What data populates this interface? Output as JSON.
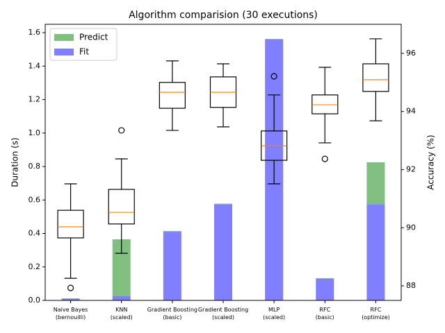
{
  "chart_data": {
    "type": "bar_box",
    "title": "Algorithm comparision (30 executions)",
    "ylabel": "Duration (s)",
    "y2label": "Accuracy (%)",
    "categories": [
      [
        "Naive Bayes",
        "(bernouilli)"
      ],
      [
        "KNN",
        "(scaled)"
      ],
      [
        "Gradient Boosting",
        "(basic)"
      ],
      [
        "Gradient Boosting",
        "(scaled)"
      ],
      [
        "MLP",
        "(scaled)"
      ],
      [
        "RFC",
        "(basic)"
      ],
      [
        "RFC",
        "(optimize)"
      ]
    ],
    "series": [
      {
        "name": "Fit",
        "color": "#7f7fff",
        "values": [
          0.01,
          0.025,
          0.41,
          0.575,
          1.56,
          0.13,
          0.575
        ]
      },
      {
        "name": "Predict",
        "color": "#7fbf7f",
        "values": [
          0.002,
          0.34,
          0.005,
          0.003,
          0.003,
          0.003,
          0.25
        ]
      }
    ],
    "boxes": [
      {
        "whislo": 88.26,
        "q1": 89.65,
        "med": 90.03,
        "q3": 90.6,
        "whishi": 91.51,
        "fliers": [
          87.93
        ]
      },
      {
        "whislo": 89.12,
        "q1": 90.13,
        "med": 90.53,
        "q3": 91.32,
        "whishi": 92.37,
        "fliers": [
          93.35
        ]
      },
      {
        "whislo": 93.35,
        "q1": 94.11,
        "med": 94.66,
        "q3": 95.0,
        "whishi": 95.74,
        "fliers": []
      },
      {
        "whislo": 93.47,
        "q1": 94.14,
        "med": 94.66,
        "q3": 95.19,
        "whishi": 95.64,
        "fliers": []
      },
      {
        "whislo": 91.51,
        "q1": 92.32,
        "med": 92.82,
        "q3": 93.33,
        "whishi": 94.57,
        "fliers": [
          95.21
        ]
      },
      {
        "whislo": 92.92,
        "q1": 93.92,
        "med": 94.23,
        "q3": 94.57,
        "whishi": 95.52,
        "fliers": [
          92.37
        ]
      },
      {
        "whislo": 93.68,
        "q1": 94.69,
        "med": 95.09,
        "q3": 95.64,
        "whishi": 96.5,
        "fliers": []
      }
    ],
    "box_color": "#000000",
    "median_color": "#ff7f0e",
    "ylim": [
      0,
      1.65
    ],
    "yticks": [
      {
        "value": 0,
        "label": "0.0"
      },
      0.2,
      0.4,
      0.6,
      0.8,
      {
        "value": 1,
        "label": "1.0"
      },
      1.2,
      1.4,
      1.6
    ],
    "y2lim": [
      87.5,
      97.0
    ],
    "y2ticks": [
      88,
      90,
      92,
      94,
      96
    ],
    "legend": "upper left"
  }
}
